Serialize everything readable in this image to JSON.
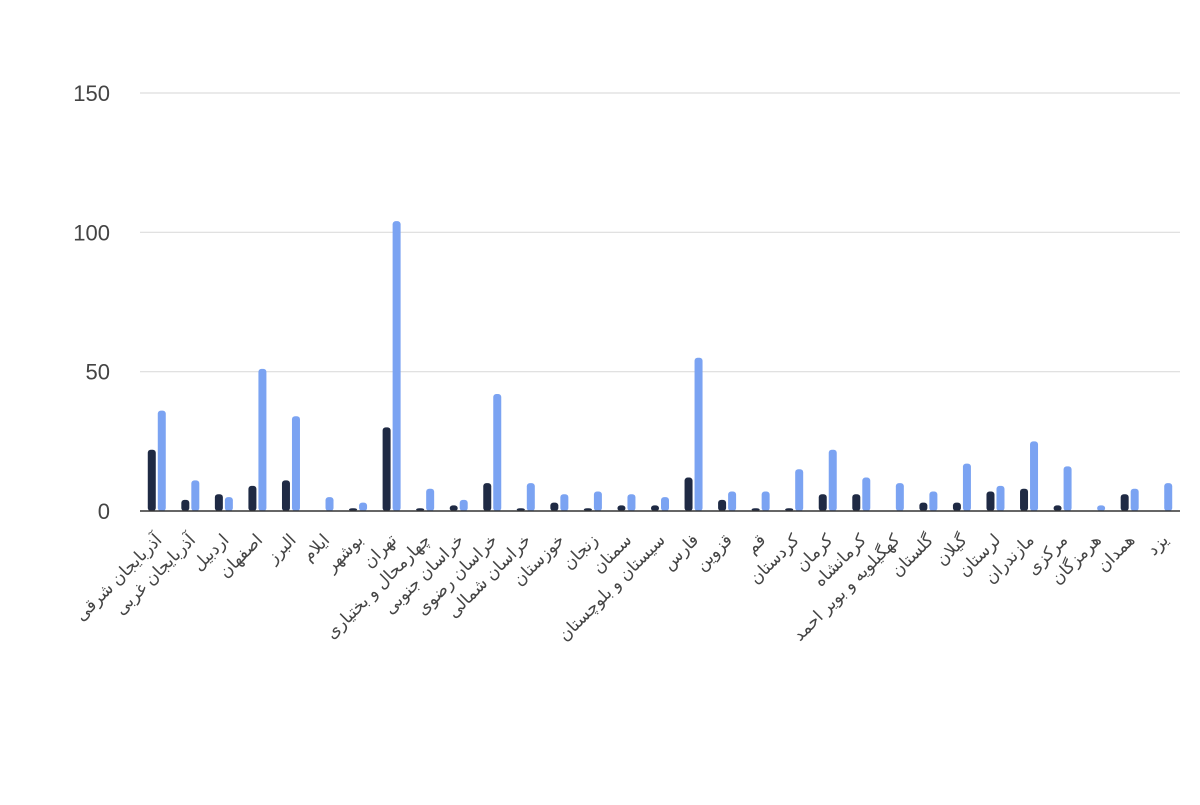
{
  "chart_data": {
    "type": "bar",
    "title": "",
    "xlabel": "",
    "ylabel": "",
    "ylim": [
      0,
      150
    ],
    "yticks": [
      0,
      50,
      100,
      150
    ],
    "grid": true,
    "legend": "none",
    "categories": [
      "آذربایجان شرقی",
      "آذربایجان غربی",
      "اردبیل",
      "اصفهان",
      "البرز",
      "ایلام",
      "بوشهر",
      "تهران",
      "چهارمحال و بختیاری",
      "خراسان جنوبی",
      "خراسان رضوی",
      "خراسان شمالی",
      "خوزستان",
      "زنجان",
      "سمنان",
      "سیستان و بلوچستان",
      "فارس",
      "قزوین",
      "قم",
      "کردستان",
      "کرمان",
      "کرمانشاه",
      "کهگیلویه و بویر احمد",
      "گلستان",
      "گیلان",
      "لرستان",
      "مازندران",
      "مرکزی",
      "هرمزگان",
      "همدان",
      "یزد"
    ],
    "series": [
      {
        "color": "#1f2a44",
        "values": [
          22,
          4,
          6,
          9,
          11,
          0,
          1,
          30,
          1,
          2,
          10,
          1,
          3,
          1,
          2,
          2,
          12,
          4,
          1,
          1,
          6,
          6,
          0,
          3,
          3,
          7,
          8,
          2,
          0,
          6,
          0
        ]
      },
      {
        "color": "#7ba3f2",
        "values": [
          36,
          11,
          5,
          51,
          34,
          5,
          3,
          104,
          8,
          4,
          42,
          10,
          6,
          7,
          6,
          5,
          55,
          7,
          7,
          15,
          22,
          12,
          10,
          7,
          17,
          9,
          25,
          16,
          2,
          8,
          10
        ]
      }
    ]
  }
}
